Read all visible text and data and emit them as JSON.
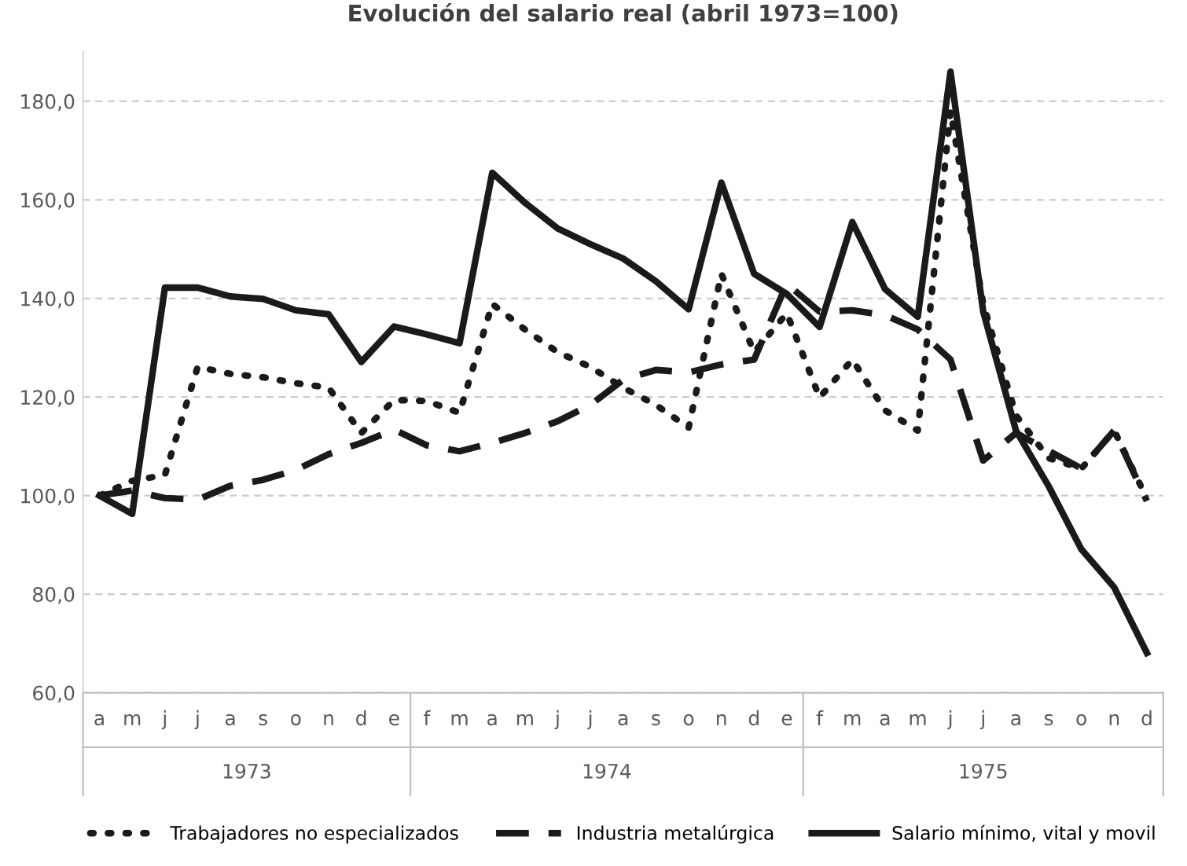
{
  "chart_data": {
    "type": "line",
    "title": "Evolución del salario real (abril 1973=100)",
    "categories": [
      "a",
      "m",
      "j",
      "j",
      "a",
      "s",
      "o",
      "n",
      "d",
      "e",
      "f",
      "m",
      "a",
      "m",
      "j",
      "j",
      "a",
      "s",
      "o",
      "n",
      "d",
      "e",
      "f",
      "m",
      "a",
      "m",
      "j",
      "j",
      "a",
      "s",
      "o",
      "n",
      "d"
    ],
    "series": [
      {
        "name": "Trabajadores no especializados",
        "color": "#1a1a1a",
        "line_style": "dotted",
        "values": [
          100,
          103,
          104.2,
          126.1,
          124.7,
          124,
          122.8,
          121.9,
          112.7,
          119.4,
          119.2,
          116.8,
          138.9,
          133.7,
          129.1,
          126.1,
          121.9,
          118.4,
          113.8,
          145,
          129.1,
          137,
          119.9,
          127.6,
          117.3,
          113.2,
          178,
          138.9,
          116.3,
          107.6,
          105.5,
          113.2,
          99.4
        ]
      },
      {
        "name": "Industria metalúrgica",
        "color": "#1a1a1a",
        "line_style": "dashed",
        "values": [
          100,
          101,
          99.5,
          99.2,
          102,
          103.2,
          105.2,
          108.4,
          110.7,
          113.4,
          110.2,
          109,
          110.7,
          112.7,
          115.1,
          118.4,
          123.5,
          125.5,
          125,
          126.6,
          127.6,
          143,
          137.3,
          137.6,
          136.6,
          133.7,
          127.6,
          107.1,
          112.7,
          109.1,
          105.5,
          113.2,
          98.9
        ]
      },
      {
        "name": "Salario mínimo, vital y movil",
        "color": "#1a1a1a",
        "line_style": "solid",
        "values": [
          100,
          96.3,
          142.2,
          142.2,
          140.4,
          139.9,
          137.6,
          136.8,
          127.1,
          134.3,
          132.7,
          130.9,
          165.5,
          159.4,
          154.2,
          151,
          148.1,
          143.5,
          137.8,
          163.5,
          145,
          140.9,
          134.2,
          155.5,
          141.9,
          136.3,
          186,
          137.3,
          113.2,
          101.9,
          89.1,
          81.4,
          68.1
        ]
      }
    ],
    "ylim": [
      60,
      190
    ],
    "yticks": [
      {
        "value": 60,
        "label": "60,0"
      },
      {
        "value": 80,
        "label": "80,0"
      },
      {
        "value": 100,
        "label": "100,0"
      },
      {
        "value": 120,
        "label": "120,0"
      },
      {
        "value": 140,
        "label": "140,0"
      },
      {
        "value": 160,
        "label": "160,0"
      },
      {
        "value": 180,
        "label": "180,0"
      }
    ],
    "grid": "y",
    "legend": "bottom",
    "marker": "none",
    "annotations": [
      "1973",
      "1974",
      "1975"
    ]
  }
}
